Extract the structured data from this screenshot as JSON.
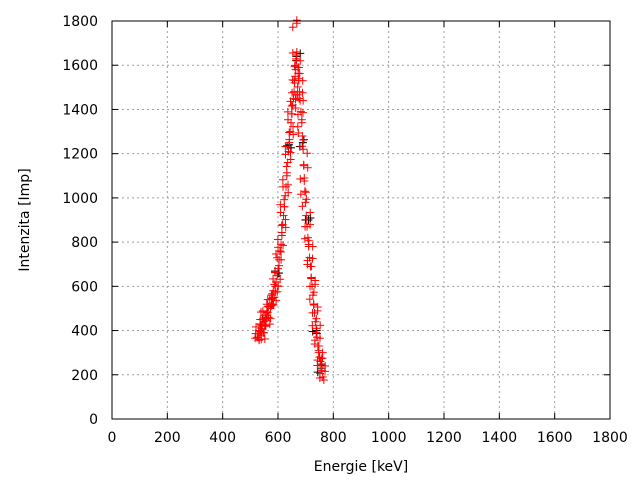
{
  "chart_data": {
    "type": "scatter",
    "title": "",
    "xlabel": "Energie [keV]",
    "ylabel": "Intenzita [Imp]",
    "xlim": [
      0,
      1800
    ],
    "ylim": [
      0,
      1800
    ],
    "xticks": [
      "0",
      "200",
      "400",
      "600",
      "800",
      "1000",
      "1200",
      "1400",
      "1600",
      "1800"
    ],
    "yticks": [
      "0",
      "200",
      "400",
      "600",
      "800",
      "1000",
      "1200",
      "1400",
      "1600",
      "1800"
    ],
    "grid": true,
    "marker": "plus",
    "colors": {
      "primary": "#ff0000",
      "secondary": "#000000"
    },
    "series": [
      {
        "color": "#ff0000",
        "points": [
          [
            528,
            370
          ],
          [
            530,
            400
          ],
          [
            532,
            360
          ],
          [
            535,
            430
          ],
          [
            538,
            380
          ],
          [
            540,
            410
          ],
          [
            543,
            450
          ],
          [
            546,
            390
          ],
          [
            550,
            440
          ],
          [
            553,
            470
          ],
          [
            556,
            420
          ],
          [
            560,
            480
          ],
          [
            563,
            510
          ],
          [
            566,
            460
          ],
          [
            570,
            540
          ],
          [
            573,
            500
          ],
          [
            576,
            560
          ],
          [
            580,
            520
          ],
          [
            583,
            580
          ],
          [
            586,
            550
          ],
          [
            590,
            600
          ],
          [
            593,
            620
          ],
          [
            597,
            650
          ],
          [
            600,
            680
          ],
          [
            604,
            720
          ],
          [
            607,
            760
          ],
          [
            611,
            790
          ],
          [
            614,
            830
          ],
          [
            617,
            880
          ],
          [
            620,
            920
          ],
          [
            623,
            960
          ],
          [
            626,
            1010
          ],
          [
            629,
            1050
          ],
          [
            632,
            1100
          ],
          [
            635,
            1160
          ],
          [
            638,
            1210
          ],
          [
            641,
            1250
          ],
          [
            644,
            1300
          ],
          [
            647,
            1340
          ],
          [
            650,
            1380
          ],
          [
            653,
            1420
          ],
          [
            656,
            1450
          ],
          [
            658,
            1480
          ],
          [
            660,
            1520
          ],
          [
            662,
            1550
          ],
          [
            664,
            1580
          ],
          [
            666,
            1620
          ],
          [
            668,
            1660
          ],
          [
            668,
            1790
          ],
          [
            672,
            1590
          ],
          [
            675,
            1530
          ],
          [
            678,
            1480
          ],
          [
            680,
            1440
          ],
          [
            683,
            1390
          ],
          [
            686,
            1340
          ],
          [
            688,
            1280
          ],
          [
            691,
            1220
          ],
          [
            693,
            1150
          ],
          [
            695,
            1090
          ],
          [
            697,
            1030
          ],
          [
            699,
            980
          ],
          [
            702,
            920
          ],
          [
            705,
            870
          ],
          [
            708,
            820
          ],
          [
            711,
            780
          ],
          [
            714,
            730
          ],
          [
            717,
            690
          ],
          [
            720,
            640
          ],
          [
            723,
            600
          ],
          [
            726,
            560
          ],
          [
            729,
            520
          ],
          [
            732,
            480
          ],
          [
            735,
            440
          ],
          [
            738,
            410
          ],
          [
            741,
            370
          ],
          [
            744,
            330
          ],
          [
            747,
            300
          ],
          [
            750,
            280
          ],
          [
            753,
            260
          ],
          [
            756,
            240
          ],
          [
            759,
            220
          ],
          [
            762,
            190
          ]
        ]
      },
      {
        "color": "#000000",
        "points": [
          [
            560,
            470
          ],
          [
            600,
            660
          ],
          [
            640,
            1240
          ],
          [
            666,
            1640
          ],
          [
            690,
            1250
          ],
          [
            710,
            900
          ],
          [
            740,
            400
          ],
          [
            758,
            230
          ]
        ]
      }
    ]
  }
}
